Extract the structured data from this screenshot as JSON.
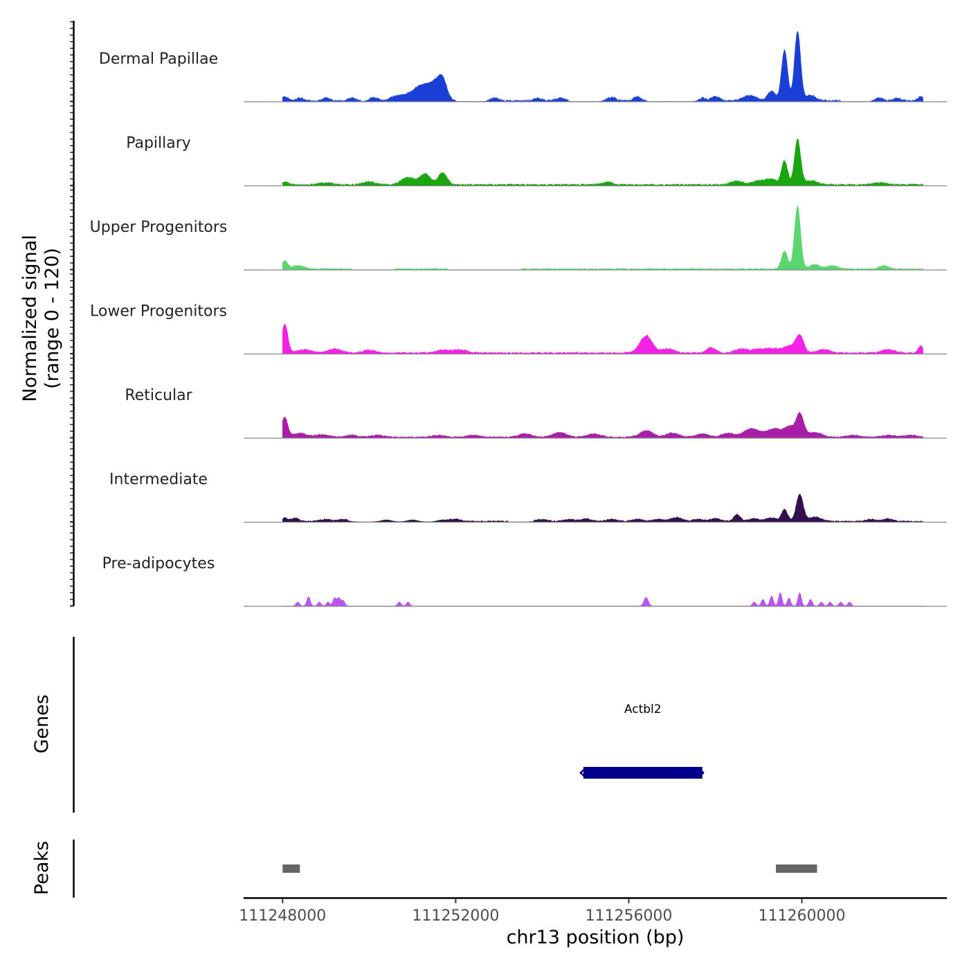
{
  "chart_data": {
    "type": "area",
    "title": "",
    "ylabel": "Normalized signal\n(range 0 - 120)",
    "ylim": [
      0,
      120
    ],
    "xlabel": "chr13 position (bp)",
    "xlim": [
      111247100,
      111263350
    ],
    "x_ticks": [
      111248000,
      111252000,
      111256000,
      111260000
    ],
    "x_tick_labels": [
      "111248000",
      "111252000",
      "111256000",
      "111260000"
    ],
    "data_extent": [
      111248000,
      111262800
    ],
    "tracks": [
      {
        "name": "Dermal Papillae",
        "color": "#1a3fd6",
        "peaks": [
          [
            111248050,
            6,
            80
          ],
          [
            111248400,
            4,
            80
          ],
          [
            111249000,
            4,
            80
          ],
          [
            111249600,
            4,
            80
          ],
          [
            111250100,
            5,
            100
          ],
          [
            111250600,
            6,
            120
          ],
          [
            111250900,
            9,
            150
          ],
          [
            111251200,
            20,
            150
          ],
          [
            111251500,
            25,
            140
          ],
          [
            111251700,
            28,
            100
          ],
          [
            111252900,
            4,
            80
          ],
          [
            111253900,
            4,
            80
          ],
          [
            111254400,
            4,
            100
          ],
          [
            111255600,
            5,
            100
          ],
          [
            111256200,
            6,
            80
          ],
          [
            111257700,
            4,
            80
          ],
          [
            111258000,
            6,
            100
          ],
          [
            111258800,
            8,
            150
          ],
          [
            111259300,
            14,
            90
          ],
          [
            111259600,
            76,
            70
          ],
          [
            111259900,
            104,
            70
          ],
          [
            111260200,
            8,
            120
          ],
          [
            111261800,
            4,
            80
          ],
          [
            111262200,
            4,
            80
          ],
          [
            111262750,
            6,
            60
          ]
        ],
        "noise": {
          "from": 111248000,
          "to": 111262800,
          "amp": 2.5,
          "spans": [
            [
              111248000,
              111249800
            ],
            [
              111250000,
              111252000
            ],
            [
              111252700,
              111254600
            ],
            [
              111255400,
              111256400
            ],
            [
              111257600,
              111260900
            ],
            [
              111261600,
              111262800
            ]
          ]
        }
      },
      {
        "name": "Papillary",
        "color": "#19a60e",
        "peaks": [
          [
            111248050,
            4,
            80
          ],
          [
            111249000,
            3,
            150
          ],
          [
            111250000,
            4,
            150
          ],
          [
            111250900,
            11,
            150
          ],
          [
            111251300,
            16,
            120
          ],
          [
            111251700,
            18,
            100
          ],
          [
            111255500,
            4,
            120
          ],
          [
            111258500,
            5,
            150
          ],
          [
            111259000,
            6,
            150
          ],
          [
            111259300,
            8,
            120
          ],
          [
            111259600,
            36,
            70
          ],
          [
            111259900,
            68,
            70
          ],
          [
            111260200,
            6,
            150
          ],
          [
            111261800,
            3,
            150
          ]
        ],
        "noise": {
          "from": 111248000,
          "to": 111262800,
          "amp": 2.5,
          "spans": [
            [
              111248000,
              111262800
            ]
          ]
        }
      },
      {
        "name": "Upper Progenitors",
        "color": "#5bd66e",
        "peaks": [
          [
            111248050,
            12,
            60
          ],
          [
            111248350,
            5,
            150
          ],
          [
            111259600,
            27,
            70
          ],
          [
            111259900,
            94,
            70
          ],
          [
            111260300,
            7,
            120
          ],
          [
            111260700,
            5,
            120
          ],
          [
            111261900,
            5,
            100
          ]
        ],
        "noise": {
          "from": 111248000,
          "to": 111262800,
          "amp": 2,
          "spans": [
            [
              111248000,
              111249600
            ],
            [
              111250600,
              111251800
            ],
            [
              111253500,
              111262800
            ]
          ]
        }
      },
      {
        "name": "Lower Progenitors",
        "color": "#f422e6",
        "peaks": [
          [
            111248050,
            43,
            70
          ],
          [
            111248500,
            5,
            150
          ],
          [
            111249200,
            6,
            150
          ],
          [
            111250000,
            4,
            150
          ],
          [
            111251700,
            4,
            150
          ],
          [
            111252100,
            5,
            150
          ],
          [
            111256400,
            26,
            140
          ],
          [
            111256900,
            6,
            150
          ],
          [
            111257900,
            8,
            100
          ],
          [
            111258600,
            6,
            150
          ],
          [
            111259000,
            5,
            150
          ],
          [
            111259300,
            6,
            150
          ],
          [
            111259700,
            10,
            150
          ],
          [
            111259950,
            25,
            90
          ],
          [
            111260500,
            5,
            150
          ],
          [
            111262000,
            5,
            150
          ],
          [
            111262750,
            11,
            60
          ]
        ],
        "noise": {
          "from": 111248000,
          "to": 111262800,
          "amp": 2.5,
          "spans": [
            [
              111248000,
              111262800
            ]
          ]
        }
      },
      {
        "name": "Reticular",
        "color": "#a81ea8",
        "peaks": [
          [
            111248050,
            30,
            70
          ],
          [
            111248400,
            6,
            150
          ],
          [
            111248900,
            4,
            150
          ],
          [
            111249600,
            3,
            150
          ],
          [
            111250200,
            3,
            150
          ],
          [
            111251600,
            3,
            150
          ],
          [
            111252400,
            3,
            150
          ],
          [
            111253600,
            5,
            150
          ],
          [
            111254400,
            7,
            150
          ],
          [
            111255200,
            5,
            150
          ],
          [
            111256400,
            10,
            150
          ],
          [
            111257000,
            6,
            150
          ],
          [
            111257700,
            5,
            150
          ],
          [
            111258300,
            6,
            150
          ],
          [
            111258800,
            12,
            150
          ],
          [
            111259100,
            6,
            150
          ],
          [
            111259400,
            12,
            150
          ],
          [
            111259700,
            15,
            100
          ],
          [
            111259950,
            36,
            90
          ],
          [
            111260300,
            7,
            150
          ],
          [
            111261200,
            3,
            150
          ],
          [
            111262000,
            3,
            150
          ],
          [
            111262500,
            3,
            150
          ]
        ],
        "noise": {
          "from": 111248000,
          "to": 111262800,
          "amp": 2,
          "spans": [
            [
              111248000,
              111262800
            ]
          ]
        }
      },
      {
        "name": "Intermediate",
        "color": "#35104f",
        "peaks": [
          [
            111248050,
            5,
            80
          ],
          [
            111248300,
            5,
            80
          ],
          [
            111249000,
            3,
            120
          ],
          [
            111249400,
            3,
            120
          ],
          [
            111250400,
            3,
            120
          ],
          [
            111251000,
            3,
            120
          ],
          [
            111251700,
            3,
            120
          ],
          [
            111252000,
            3,
            120
          ],
          [
            111254000,
            3,
            120
          ],
          [
            111254600,
            3,
            120
          ],
          [
            111255000,
            4,
            120
          ],
          [
            111255600,
            3,
            120
          ],
          [
            111256200,
            3,
            120
          ],
          [
            111256700,
            3,
            120
          ],
          [
            111257100,
            6,
            120
          ],
          [
            111257600,
            3,
            120
          ],
          [
            111258000,
            4,
            120
          ],
          [
            111258500,
            10,
            80
          ],
          [
            111258900,
            4,
            120
          ],
          [
            111259300,
            5,
            120
          ],
          [
            111259600,
            18,
            70
          ],
          [
            111259950,
            40,
            80
          ],
          [
            111260300,
            6,
            150
          ],
          [
            111261600,
            3,
            120
          ],
          [
            111262000,
            4,
            100
          ]
        ],
        "noise": {
          "from": 111248000,
          "to": 111262800,
          "amp": 2,
          "spans": [
            [
              111248000,
              111249500
            ],
            [
              111251800,
              111253200
            ],
            [
              111253800,
              111262800
            ]
          ]
        }
      },
      {
        "name": "Pre-adipocytes",
        "color": "#bb55f0",
        "peaks": [
          [
            111248350,
            6,
            40
          ],
          [
            111248600,
            14,
            40
          ],
          [
            111248850,
            6,
            40
          ],
          [
            111249050,
            6,
            40
          ],
          [
            111249200,
            12,
            40
          ],
          [
            111249300,
            12,
            40
          ],
          [
            111249400,
            8,
            40
          ],
          [
            111250700,
            6,
            40
          ],
          [
            111250900,
            6,
            40
          ],
          [
            111256400,
            13,
            50
          ],
          [
            111258900,
            6,
            40
          ],
          [
            111259100,
            10,
            40
          ],
          [
            111259300,
            15,
            40
          ],
          [
            111259500,
            20,
            40
          ],
          [
            111259700,
            12,
            40
          ],
          [
            111259950,
            20,
            40
          ],
          [
            111260200,
            10,
            40
          ],
          [
            111260450,
            6,
            40
          ],
          [
            111260650,
            6,
            40
          ],
          [
            111260900,
            6,
            40
          ],
          [
            111261100,
            6,
            40
          ]
        ],
        "noise": null
      }
    ],
    "genes": [
      {
        "name": "Actbl2",
        "start": 111254950,
        "end": 111257700,
        "strand": "-",
        "color": "#00008b"
      }
    ],
    "genes_label": "Genes",
    "peaks_label": "Peaks",
    "peak_regions": [
      {
        "start": 111248000,
        "end": 111248400,
        "color": "#666666"
      },
      {
        "start": 111259400,
        "end": 111260350,
        "color": "#666666"
      }
    ]
  }
}
